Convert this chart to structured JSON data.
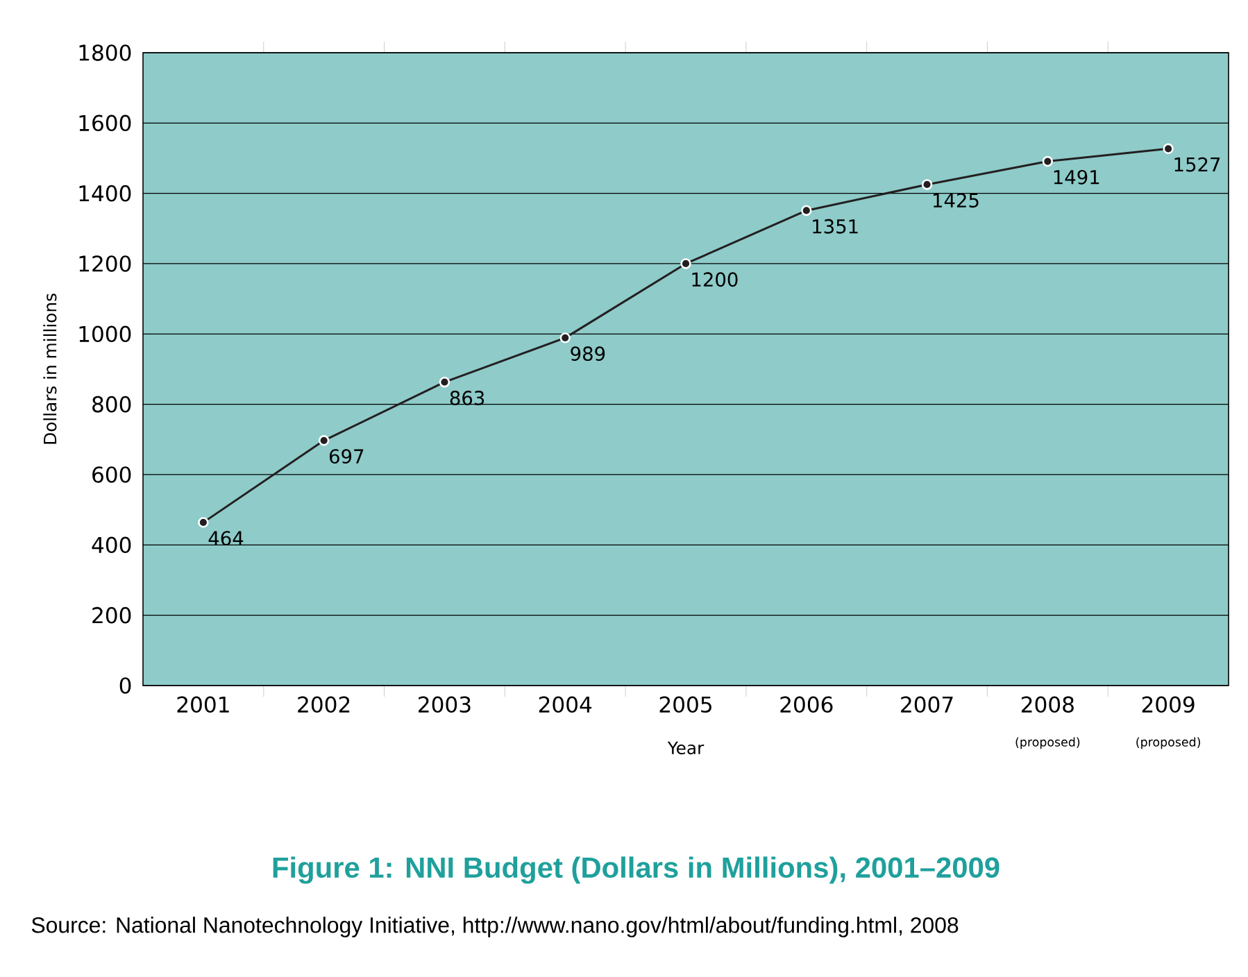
{
  "chart_data": {
    "type": "line",
    "title": "Figure 1: NNI Budget (Dollars in Millions), 2001–2009",
    "xlabel": "Year",
    "ylabel": "Dollars in millions",
    "categories": [
      "2001",
      "2002",
      "2003",
      "2004",
      "2005",
      "2006",
      "2007",
      "2008",
      "2009"
    ],
    "values": [
      464,
      697,
      863,
      989,
      1200,
      1351,
      1425,
      1491,
      1527
    ],
    "color": "#231f20",
    "marker": "circle",
    "line_style": "solid",
    "data_labels": true,
    "grid": "y",
    "ylim": [
      0,
      1800
    ],
    "yticks": [
      0,
      200,
      400,
      600,
      800,
      1000,
      1200,
      1400,
      1600,
      1800
    ],
    "annotations": [
      "(proposed)",
      "(proposed)",
      "Source: National Nanotechnology Initiative, http://www.nano.gov/html/about/funding.html, 2008"
    ]
  }
}
